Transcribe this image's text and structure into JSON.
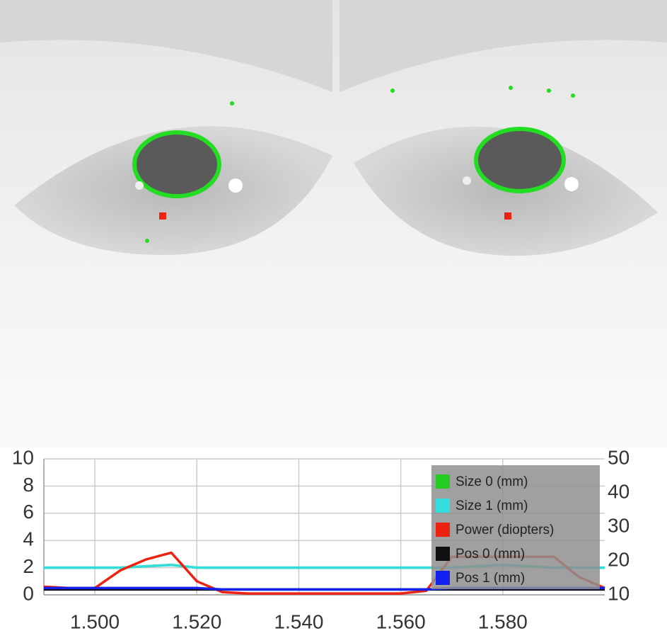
{
  "chart_data": {
    "type": "line",
    "x": [
      1.49,
      1.495,
      1.5,
      1.505,
      1.51,
      1.515,
      1.52,
      1.525,
      1.53,
      1.535,
      1.54,
      1.545,
      1.55,
      1.555,
      1.56,
      1.565,
      1.57,
      1.575,
      1.58,
      1.585,
      1.59,
      1.595,
      1.6
    ],
    "series": [
      {
        "name": "Size 0 (mm)",
        "color": "#22cc22",
        "values": [
          2.0,
          2.0,
          2.0,
          2.0,
          2.1,
          2.2,
          2.0,
          2.0,
          2.0,
          2.0,
          2.0,
          2.0,
          2.0,
          2.0,
          2.0,
          2.0,
          2.0,
          2.1,
          2.2,
          2.1,
          2.0,
          2.0,
          2.0
        ]
      },
      {
        "name": "Size 1 (mm)",
        "color": "#33dddd",
        "values": [
          2.0,
          2.0,
          2.0,
          2.0,
          2.1,
          2.2,
          2.0,
          2.0,
          2.0,
          2.0,
          2.0,
          2.0,
          2.0,
          2.0,
          2.0,
          2.0,
          2.0,
          2.1,
          2.2,
          2.1,
          2.0,
          2.0,
          2.0
        ]
      },
      {
        "name": "Power (diopters)",
        "color": "#ee2211",
        "values": [
          0.6,
          0.5,
          0.5,
          1.8,
          2.6,
          3.1,
          1.0,
          0.2,
          0.1,
          0.1,
          0.1,
          0.1,
          0.1,
          0.1,
          0.1,
          0.3,
          2.8,
          2.8,
          2.8,
          2.8,
          2.8,
          1.3,
          0.5
        ]
      },
      {
        "name": "Pos 0 (mm)",
        "color": "#111111",
        "values": [
          0.4,
          0.4,
          0.4,
          0.4,
          0.4,
          0.4,
          0.4,
          0.4,
          0.4,
          0.4,
          0.4,
          0.4,
          0.4,
          0.4,
          0.4,
          0.4,
          0.4,
          0.4,
          0.4,
          0.4,
          0.4,
          0.4,
          0.4
        ]
      },
      {
        "name": "Pos 1 (mm)",
        "color": "#1122ee",
        "values": [
          0.5,
          0.5,
          0.5,
          0.5,
          0.5,
          0.5,
          0.5,
          0.4,
          0.4,
          0.4,
          0.4,
          0.4,
          0.4,
          0.4,
          0.4,
          0.4,
          0.5,
          0.5,
          0.5,
          0.5,
          0.5,
          0.5,
          0.5
        ]
      }
    ],
    "xlim": [
      1.49,
      1.6
    ],
    "xticks": [
      {
        "value": 1.5,
        "label": "1.500"
      },
      {
        "value": 1.52,
        "label": "1.520"
      },
      {
        "value": 1.54,
        "label": "1.540"
      },
      {
        "value": 1.56,
        "label": "1.560"
      },
      {
        "value": 1.58,
        "label": "1.580"
      }
    ],
    "ylim": [
      0,
      10
    ],
    "yticks": [
      0,
      2,
      4,
      6,
      8,
      10
    ],
    "y2lim": [
      10,
      50
    ],
    "y2ticks": [
      10,
      20,
      30,
      40,
      50
    ],
    "grid": true,
    "legend": "upper right"
  }
}
